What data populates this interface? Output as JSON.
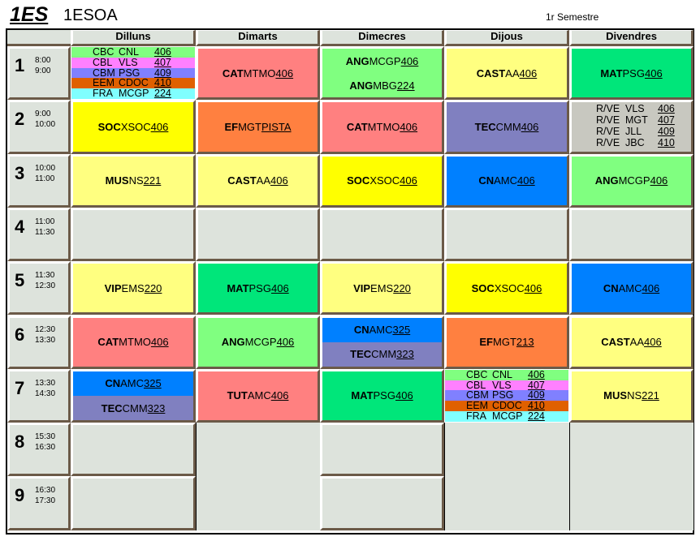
{
  "header": {
    "code": "1ES",
    "group": "1ESOA",
    "semester": "1r Semestre"
  },
  "days": [
    "Dilluns",
    "Dimarts",
    "Dimecres",
    "Dijous",
    "Divendres"
  ],
  "colors": {
    "empty": "#dde3dc",
    "CAT": "#ff8080",
    "ANG": "#80ff80",
    "CAST": "#ffff80",
    "MAT": "#00e67a",
    "SOC": "#ffff00",
    "EF": "#ff8040",
    "TEC": "#8080c0",
    "RVE": "#c8c8c0",
    "MUS": "#ffff80",
    "CN": "#0080ff",
    "VIP": "#ffff80",
    "TUT": "#ff8080",
    "CBC": "#80ff80",
    "CBL": "#ff80ff",
    "CBM": "#8080ff",
    "EEM": "#e06000",
    "FRA": "#80ffff"
  },
  "rows": [
    {
      "n": "1",
      "start": "8:00",
      "end": "9:00",
      "cells": [
        {
          "type": "list",
          "entries": [
            {
              "s": "CBC",
              "t": "CNL",
              "r": "406",
              "c": "CBC"
            },
            {
              "s": "CBL",
              "t": "VLS",
              "r": "407",
              "c": "CBL"
            },
            {
              "s": "CBM",
              "t": "PSG",
              "r": "409",
              "c": "CBM"
            },
            {
              "s": "EEM",
              "t": "CDOC",
              "r": "410",
              "c": "EEM"
            },
            {
              "s": "FRA",
              "t": "MCGP",
              "r": "224",
              "c": "FRA"
            }
          ]
        },
        {
          "type": "single",
          "entries": [
            {
              "s": "CAT",
              "t": "MTMO",
              "r": "406",
              "c": "CAT"
            }
          ]
        },
        {
          "type": "split",
          "entries": [
            {
              "s": "ANG",
              "t": "MCGP",
              "r": "406",
              "c": "ANG"
            },
            {
              "s": "ANG",
              "t": "MBG",
              "r": "224",
              "c": "ANG"
            }
          ]
        },
        {
          "type": "single",
          "entries": [
            {
              "s": "CAST",
              "t": "AA",
              "r": "406",
              "c": "CAST"
            }
          ]
        },
        {
          "type": "single",
          "entries": [
            {
              "s": "MAT",
              "t": "PSG",
              "r": "406",
              "c": "MAT"
            }
          ]
        }
      ]
    },
    {
      "n": "2",
      "start": "9:00",
      "end": "10:00",
      "cells": [
        {
          "type": "single",
          "entries": [
            {
              "s": "SOC",
              "t": "XSOC",
              "r": "406",
              "c": "SOC"
            }
          ]
        },
        {
          "type": "single",
          "entries": [
            {
              "s": "EF",
              "t": "MGT",
              "r": "PISTA",
              "c": "EF"
            }
          ]
        },
        {
          "type": "single",
          "entries": [
            {
              "s": "CAT",
              "t": "MTMO",
              "r": "406",
              "c": "CAT"
            }
          ]
        },
        {
          "type": "single",
          "entries": [
            {
              "s": "TEC",
              "t": "CMM",
              "r": "406",
              "c": "TEC"
            }
          ]
        },
        {
          "type": "rve",
          "entries": [
            {
              "s": "R/VE",
              "t": "VLS",
              "r": "406",
              "c": "RVE"
            },
            {
              "s": "R/VE",
              "t": "MGT",
              "r": "407",
              "c": "RVE"
            },
            {
              "s": "R/VE",
              "t": "JLL",
              "r": "409",
              "c": "RVE"
            },
            {
              "s": "R/VE",
              "t": "JBC",
              "r": "410",
              "c": "RVE"
            }
          ]
        }
      ]
    },
    {
      "n": "3",
      "start": "10:00",
      "end": "11:00",
      "cells": [
        {
          "type": "single",
          "entries": [
            {
              "s": "MUS",
              "t": "NS",
              "r": "221",
              "c": "MUS"
            }
          ]
        },
        {
          "type": "single",
          "entries": [
            {
              "s": "CAST",
              "t": "AA",
              "r": "406",
              "c": "CAST"
            }
          ]
        },
        {
          "type": "single",
          "entries": [
            {
              "s": "SOC",
              "t": "XSOC",
              "r": "406",
              "c": "SOC"
            }
          ]
        },
        {
          "type": "single",
          "entries": [
            {
              "s": "CN",
              "t": "AMC",
              "r": "406",
              "c": "CN"
            }
          ]
        },
        {
          "type": "single",
          "entries": [
            {
              "s": "ANG",
              "t": "MCGP",
              "r": "406",
              "c": "ANG"
            }
          ]
        }
      ]
    },
    {
      "n": "4",
      "start": "11:00",
      "end": "11:30",
      "cells": [
        {
          "type": "empty"
        },
        {
          "type": "empty"
        },
        {
          "type": "empty"
        },
        {
          "type": "empty"
        },
        {
          "type": "empty"
        }
      ]
    },
    {
      "n": "5",
      "start": "11:30",
      "end": "12:30",
      "cells": [
        {
          "type": "single",
          "entries": [
            {
              "s": "VIP",
              "t": "EMS",
              "r": "220",
              "c": "VIP"
            }
          ]
        },
        {
          "type": "single",
          "entries": [
            {
              "s": "MAT",
              "t": "PSG",
              "r": "406",
              "c": "MAT"
            }
          ]
        },
        {
          "type": "single",
          "entries": [
            {
              "s": "VIP",
              "t": "EMS",
              "r": "220",
              "c": "VIP"
            }
          ]
        },
        {
          "type": "single",
          "entries": [
            {
              "s": "SOC",
              "t": "XSOC",
              "r": "406",
              "c": "SOC"
            }
          ]
        },
        {
          "type": "single",
          "entries": [
            {
              "s": "CN",
              "t": "AMC",
              "r": "406",
              "c": "CN"
            }
          ]
        }
      ]
    },
    {
      "n": "6",
      "start": "12:30",
      "end": "13:30",
      "cells": [
        {
          "type": "single",
          "entries": [
            {
              "s": "CAT",
              "t": "MTMO",
              "r": "406",
              "c": "CAT"
            }
          ]
        },
        {
          "type": "single",
          "entries": [
            {
              "s": "ANG",
              "t": "MCGP",
              "r": "406",
              "c": "ANG"
            }
          ]
        },
        {
          "type": "split",
          "entries": [
            {
              "s": "CN",
              "t": "AMC",
              "r": "325",
              "c": "CN"
            },
            {
              "s": "TEC",
              "t": "CMM",
              "r": "323",
              "c": "TEC"
            }
          ]
        },
        {
          "type": "single",
          "entries": [
            {
              "s": "EF",
              "t": "MGT",
              "r": "213",
              "c": "EF"
            }
          ]
        },
        {
          "type": "single",
          "entries": [
            {
              "s": "CAST",
              "t": "AA",
              "r": "406",
              "c": "CAST"
            }
          ]
        }
      ]
    },
    {
      "n": "7",
      "start": "13:30",
      "end": "14:30",
      "cells": [
        {
          "type": "split",
          "entries": [
            {
              "s": "CN",
              "t": "AMC",
              "r": "325",
              "c": "CN"
            },
            {
              "s": "TEC",
              "t": "CMM",
              "r": "323",
              "c": "TEC"
            }
          ]
        },
        {
          "type": "single",
          "entries": [
            {
              "s": "TUT",
              "t": "AMC",
              "r": "406",
              "c": "TUT"
            }
          ]
        },
        {
          "type": "single",
          "entries": [
            {
              "s": "MAT",
              "t": "PSG",
              "r": "406",
              "c": "MAT"
            }
          ]
        },
        {
          "type": "list",
          "entries": [
            {
              "s": "CBC",
              "t": "CNL",
              "r": "406",
              "c": "CBC"
            },
            {
              "s": "CBL",
              "t": "VLS",
              "r": "407",
              "c": "CBL"
            },
            {
              "s": "CBM",
              "t": "PSG",
              "r": "409",
              "c": "CBM"
            },
            {
              "s": "EEM",
              "t": "CDOC",
              "r": "410",
              "c": "EEM"
            },
            {
              "s": "FRA",
              "t": "MCGP",
              "r": "224",
              "c": "FRA"
            }
          ]
        },
        {
          "type": "single",
          "entries": [
            {
              "s": "MUS",
              "t": "NS",
              "r": "221",
              "c": "MUS"
            }
          ]
        }
      ]
    },
    {
      "n": "8",
      "start": "15:30",
      "end": "16:30",
      "cells": [
        {
          "type": "empty"
        },
        {
          "type": "flat",
          "span": 2
        },
        {
          "type": "empty"
        },
        {
          "type": "flat",
          "span": 2
        },
        {
          "type": "flat",
          "span": 2
        }
      ]
    },
    {
      "n": "9",
      "start": "16:30",
      "end": "17:30",
      "cells": [
        {
          "type": "empty"
        },
        null,
        {
          "type": "empty"
        },
        null,
        null
      ]
    }
  ]
}
